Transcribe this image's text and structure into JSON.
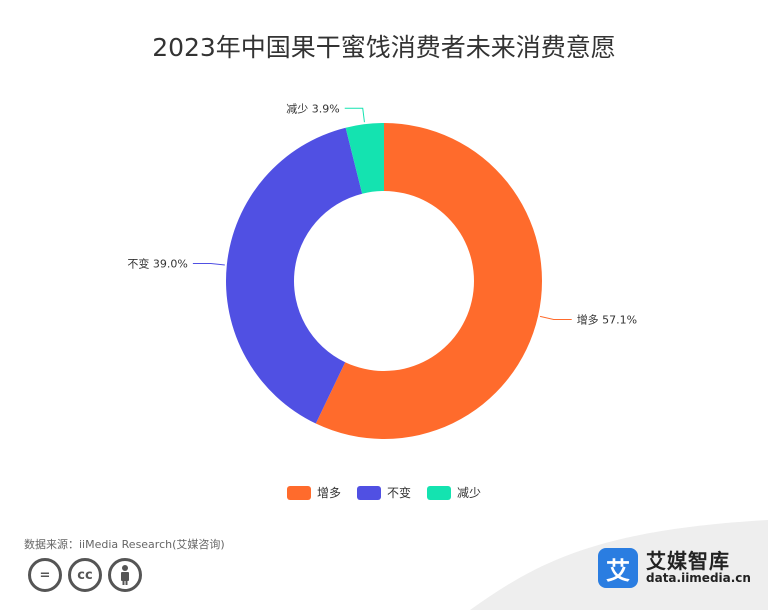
{
  "title": "2023年中国果干蜜饯消费者未来消费意愿",
  "source": "数据来源：iiMedia Research(艾媒咨询)",
  "brand": {
    "logo_char": "艾",
    "name": "艾媒智库",
    "url": "data.iimedia.cn"
  },
  "license": {
    "equal_icon": "=",
    "cc_icon": "cc",
    "person_icon": "person-icon"
  },
  "chart_data": {
    "type": "pie",
    "variant": "donut",
    "title": "2023年中国果干蜜饯消费者未来消费意愿",
    "unit": "%",
    "legend_position": "bottom",
    "categories": [
      "增多",
      "不变",
      "减少"
    ],
    "values": [
      57.1,
      39.0,
      3.9
    ],
    "labels": [
      "增多 57.1%",
      "不变 39.0%",
      "减少 3.9%"
    ],
    "colors": [
      "#ff6b2c",
      "#5050e3",
      "#14e3b0"
    ]
  }
}
